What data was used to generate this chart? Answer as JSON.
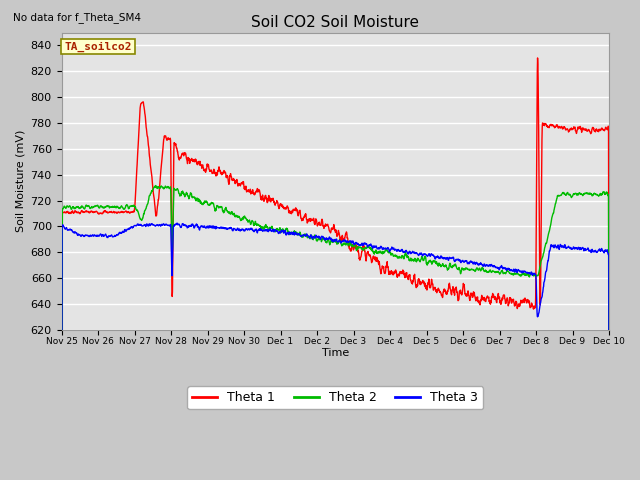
{
  "title": "Soil CO2 Soil Moisture",
  "subtitle": "No data for f_Theta_SM4",
  "box_label": "TA_soilco2",
  "ylabel": "Soil Moisture (mV)",
  "xlabel": "Time",
  "ylim": [
    620,
    850
  ],
  "yticks": [
    620,
    640,
    660,
    680,
    700,
    720,
    740,
    760,
    780,
    800,
    820,
    840
  ],
  "x_tick_labels": [
    "Nov 25",
    "Nov 26",
    "Nov 27",
    "Nov 28",
    "Nov 29",
    "Nov 30",
    "Dec 1",
    "Dec 2",
    "Dec 3",
    "Dec 4",
    "Dec 5",
    "Dec 6",
    "Dec 7",
    "Dec 8",
    "Dec 9",
    "Dec 10"
  ],
  "legend_entries": [
    "Theta 1",
    "Theta 2",
    "Theta 3"
  ],
  "line_colors": [
    "#ff0000",
    "#00bb00",
    "#0000ff"
  ],
  "bg_color": "#e8e8e8",
  "fig_bg": "#d0d0d0"
}
